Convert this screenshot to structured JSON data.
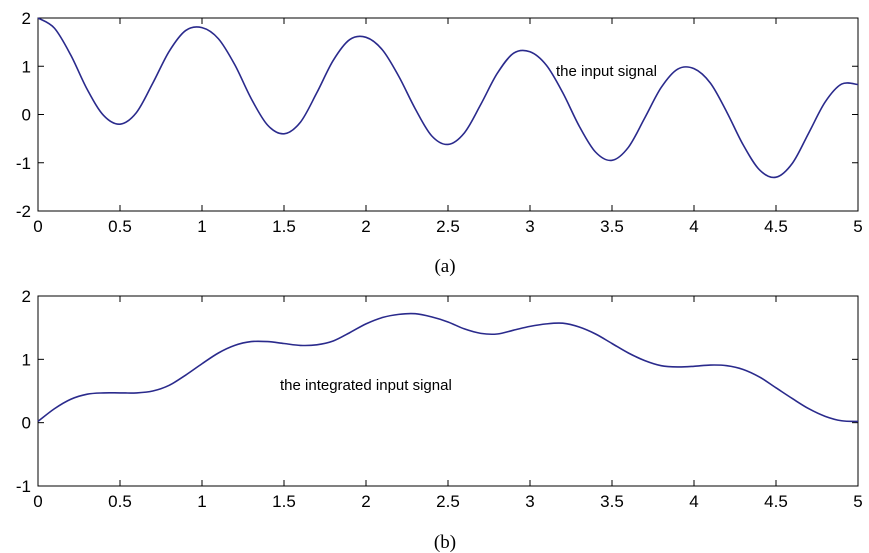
{
  "chart_data": [
    {
      "type": "line",
      "caption": "(a)",
      "annotation": "the input signal",
      "xlim": [
        0,
        5
      ],
      "ylim": [
        -2,
        2
      ],
      "xticks": [
        "0",
        "0.5",
        "1",
        "1.5",
        "2",
        "2.5",
        "3",
        "3.5",
        "4",
        "4.5",
        "5"
      ],
      "yticks": [
        "-2",
        "-1",
        "0",
        "1",
        "2"
      ],
      "grid": false,
      "line_color": "#2a2a8c",
      "series": [
        {
          "x": [
            0,
            0.1,
            0.2,
            0.3,
            0.4,
            0.5,
            0.6,
            0.7,
            0.8,
            0.9,
            1.0,
            1.1,
            1.2,
            1.3,
            1.4,
            1.5,
            1.6,
            1.7,
            1.8,
            1.9,
            2.0,
            2.1,
            2.2,
            2.3,
            2.4,
            2.5,
            2.6,
            2.7,
            2.8,
            2.9,
            3.0,
            3.1,
            3.2,
            3.3,
            3.4,
            3.5,
            3.6,
            3.7,
            3.8,
            3.9,
            4.0,
            4.1,
            4.2,
            4.3,
            4.4,
            4.5,
            4.6,
            4.7,
            4.8,
            4.9,
            5.0
          ],
          "y": [
            2.0,
            1.79,
            1.23,
            0.52,
            -0.02,
            -0.2,
            0.04,
            0.65,
            1.31,
            1.74,
            1.8,
            1.57,
            1.03,
            0.33,
            -0.22,
            -0.4,
            -0.16,
            0.45,
            1.12,
            1.55,
            1.6,
            1.34,
            0.79,
            0.12,
            -0.44,
            -0.62,
            -0.38,
            0.21,
            0.85,
            1.27,
            1.3,
            1.02,
            0.45,
            -0.24,
            -0.78,
            -0.95,
            -0.68,
            -0.07,
            0.56,
            0.94,
            0.95,
            0.65,
            0.05,
            -0.63,
            -1.15,
            -1.3,
            -1.01,
            -0.38,
            0.26,
            0.63,
            0.62
          ]
        }
      ]
    },
    {
      "type": "line",
      "caption": "(b)",
      "annotation": "the integrated input signal",
      "xlim": [
        0,
        5
      ],
      "ylim": [
        -1,
        2
      ],
      "xticks": [
        "0",
        "0.5",
        "1",
        "1.5",
        "2",
        "2.5",
        "3",
        "3.5",
        "4",
        "4.5",
        "5"
      ],
      "yticks": [
        "-1",
        "0",
        "1",
        "2"
      ],
      "grid": false,
      "line_color": "#2a2a8c",
      "series": [
        {
          "x": [
            0,
            0.1,
            0.2,
            0.3,
            0.4,
            0.5,
            0.6,
            0.7,
            0.8,
            0.9,
            1.0,
            1.1,
            1.2,
            1.3,
            1.4,
            1.5,
            1.6,
            1.7,
            1.8,
            1.9,
            2.0,
            2.1,
            2.2,
            2.3,
            2.4,
            2.5,
            2.6,
            2.7,
            2.8,
            2.9,
            3.0,
            3.1,
            3.2,
            3.3,
            3.4,
            3.5,
            3.6,
            3.7,
            3.8,
            3.9,
            4.0,
            4.1,
            4.2,
            4.3,
            4.4,
            4.5,
            4.6,
            4.7,
            4.8,
            4.9,
            5.0
          ],
          "y": [
            0.02,
            0.22,
            0.37,
            0.45,
            0.47,
            0.47,
            0.47,
            0.5,
            0.59,
            0.75,
            0.93,
            1.1,
            1.22,
            1.28,
            1.28,
            1.25,
            1.22,
            1.23,
            1.29,
            1.42,
            1.56,
            1.66,
            1.71,
            1.72,
            1.67,
            1.59,
            1.48,
            1.41,
            1.4,
            1.46,
            1.52,
            1.56,
            1.57,
            1.51,
            1.4,
            1.25,
            1.1,
            0.98,
            0.9,
            0.88,
            0.89,
            0.91,
            0.9,
            0.84,
            0.72,
            0.55,
            0.38,
            0.22,
            0.1,
            0.03,
            0.02
          ]
        }
      ]
    }
  ]
}
